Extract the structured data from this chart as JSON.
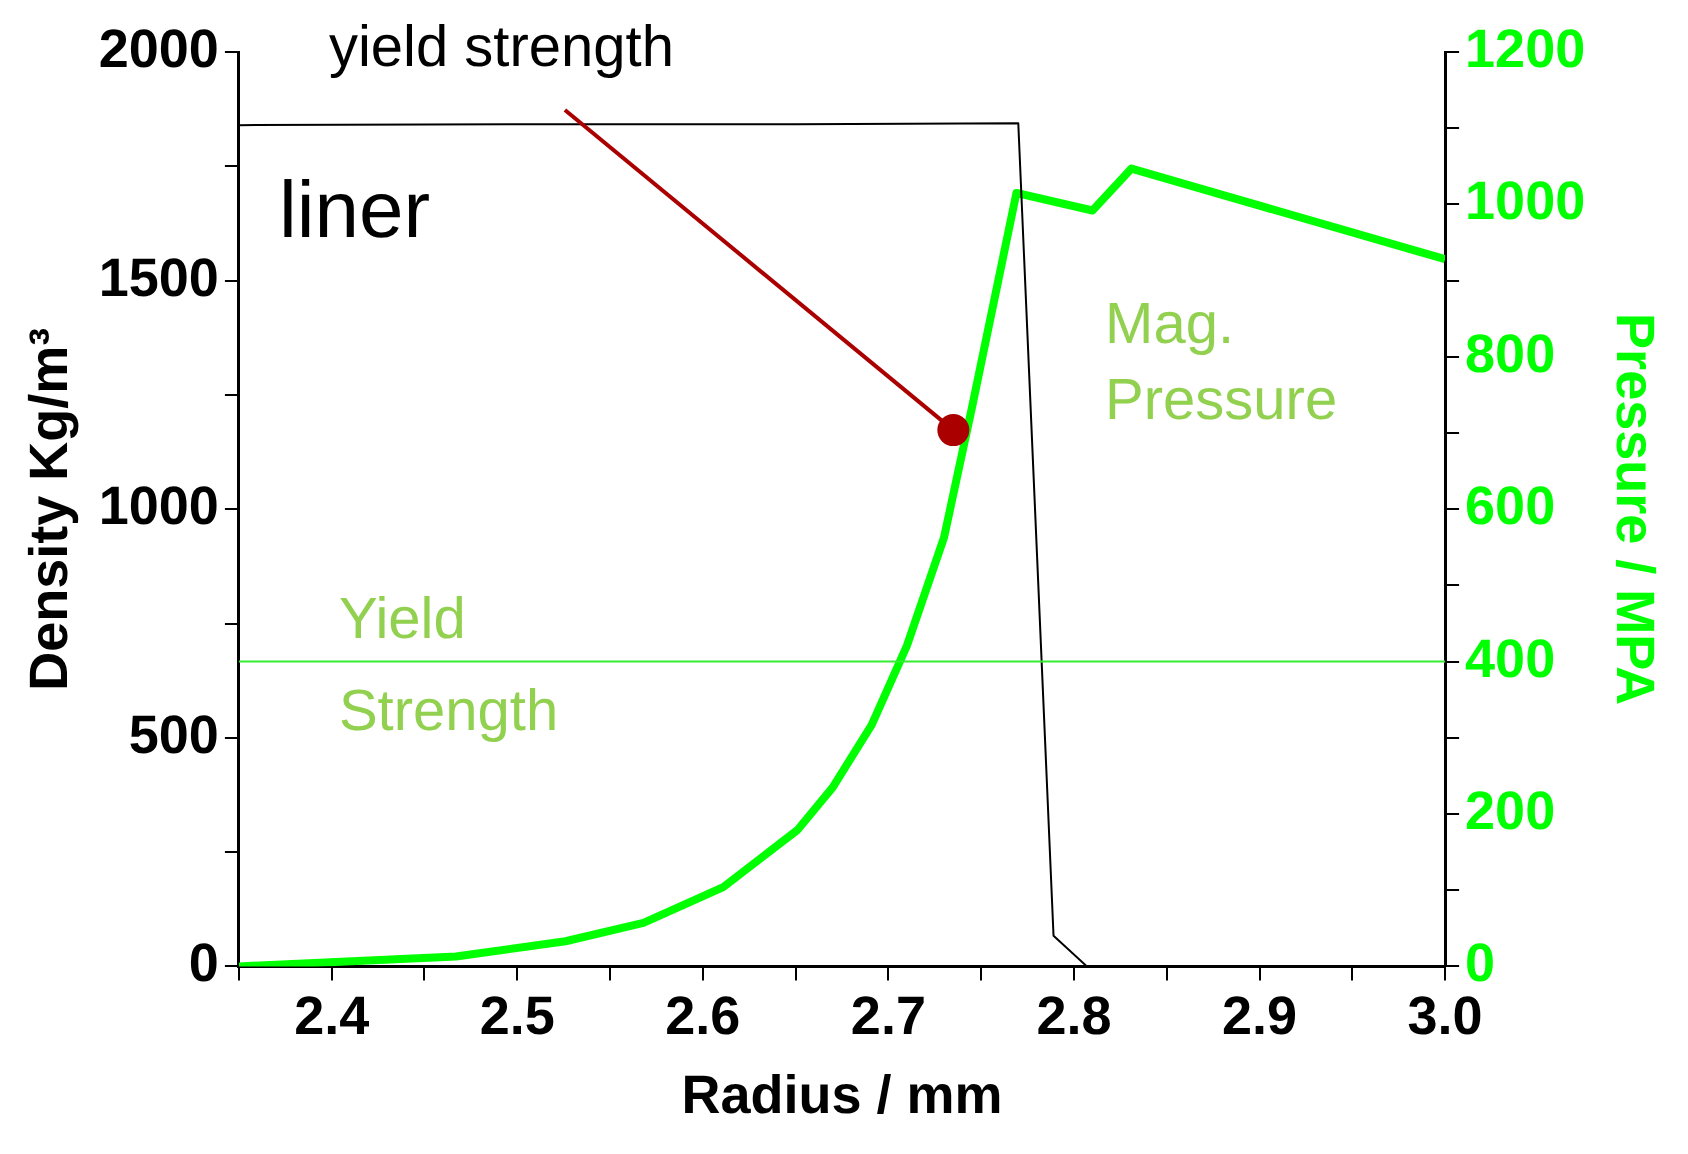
{
  "chart_data": {
    "type": "line",
    "xlabel": "Radius / mm",
    "ylabel": "Density Kg/m³",
    "y2label": "Pressure / MPA",
    "xlim": [
      2.35,
      3.0
    ],
    "xticks": [
      {
        "value": 2.35,
        "label": null
      },
      2.4,
      {
        "value": 2.45,
        "label": null
      },
      2.5,
      {
        "value": 2.55,
        "label": null
      },
      2.6,
      {
        "value": 2.65,
        "label": null
      },
      2.7,
      {
        "value": 2.75,
        "label": null
      },
      2.8,
      {
        "value": 2.85,
        "label": null
      },
      2.9,
      {
        "value": 2.95,
        "label": null
      },
      {
        "value": 3.0,
        "label": "3.0"
      }
    ],
    "ylim": [
      0,
      2000
    ],
    "yticks": [
      0,
      {
        "value": 250,
        "label": null
      },
      500,
      {
        "value": 750,
        "label": null
      },
      1000,
      {
        "value": 1250,
        "label": null
      },
      1500,
      {
        "value": 1750,
        "label": null
      },
      2000
    ],
    "y2lim": [
      0,
      1200
    ],
    "y2ticks": [
      0,
      {
        "value": 100,
        "label": null
      },
      200,
      {
        "value": 300,
        "label": null
      },
      400,
      {
        "value": 500,
        "label": null
      },
      600,
      {
        "value": 700,
        "label": null
      },
      800,
      {
        "value": 900,
        "label": null
      },
      1000,
      {
        "value": 1100,
        "label": null
      },
      1200
    ],
    "grid": false,
    "legend": false,
    "marker": "none",
    "line_style": "solid",
    "series": [
      {
        "name": "liner",
        "color": "#000000",
        "x": [
          2.35,
          2.5,
          2.65,
          2.77,
          2.789,
          2.807
        ],
        "values": [
          1840,
          1842,
          1842,
          1844,
          67,
          0
        ]
      },
      {
        "name": "Mag. Pressure",
        "color": "#00ff00",
        "axis": "y2",
        "x": [
          2.35,
          2.467,
          2.526,
          2.568,
          2.611,
          2.651,
          2.67,
          2.691,
          2.71,
          2.73,
          2.745,
          2.769,
          2.81,
          2.831,
          3.0
        ],
        "values": [
          0,
          13,
          33,
          57,
          104,
          179,
          235,
          317,
          421,
          563,
          733,
          1015,
          992,
          1047,
          928
        ]
      }
    ],
    "ref_lines": [
      {
        "axis": "y2",
        "value": 400,
        "label": "Yield Strength",
        "color": "#33ee33"
      }
    ],
    "annotations": [
      {
        "text": "yield strength",
        "x": 2.735,
        "y": 1173
      }
    ]
  }
}
